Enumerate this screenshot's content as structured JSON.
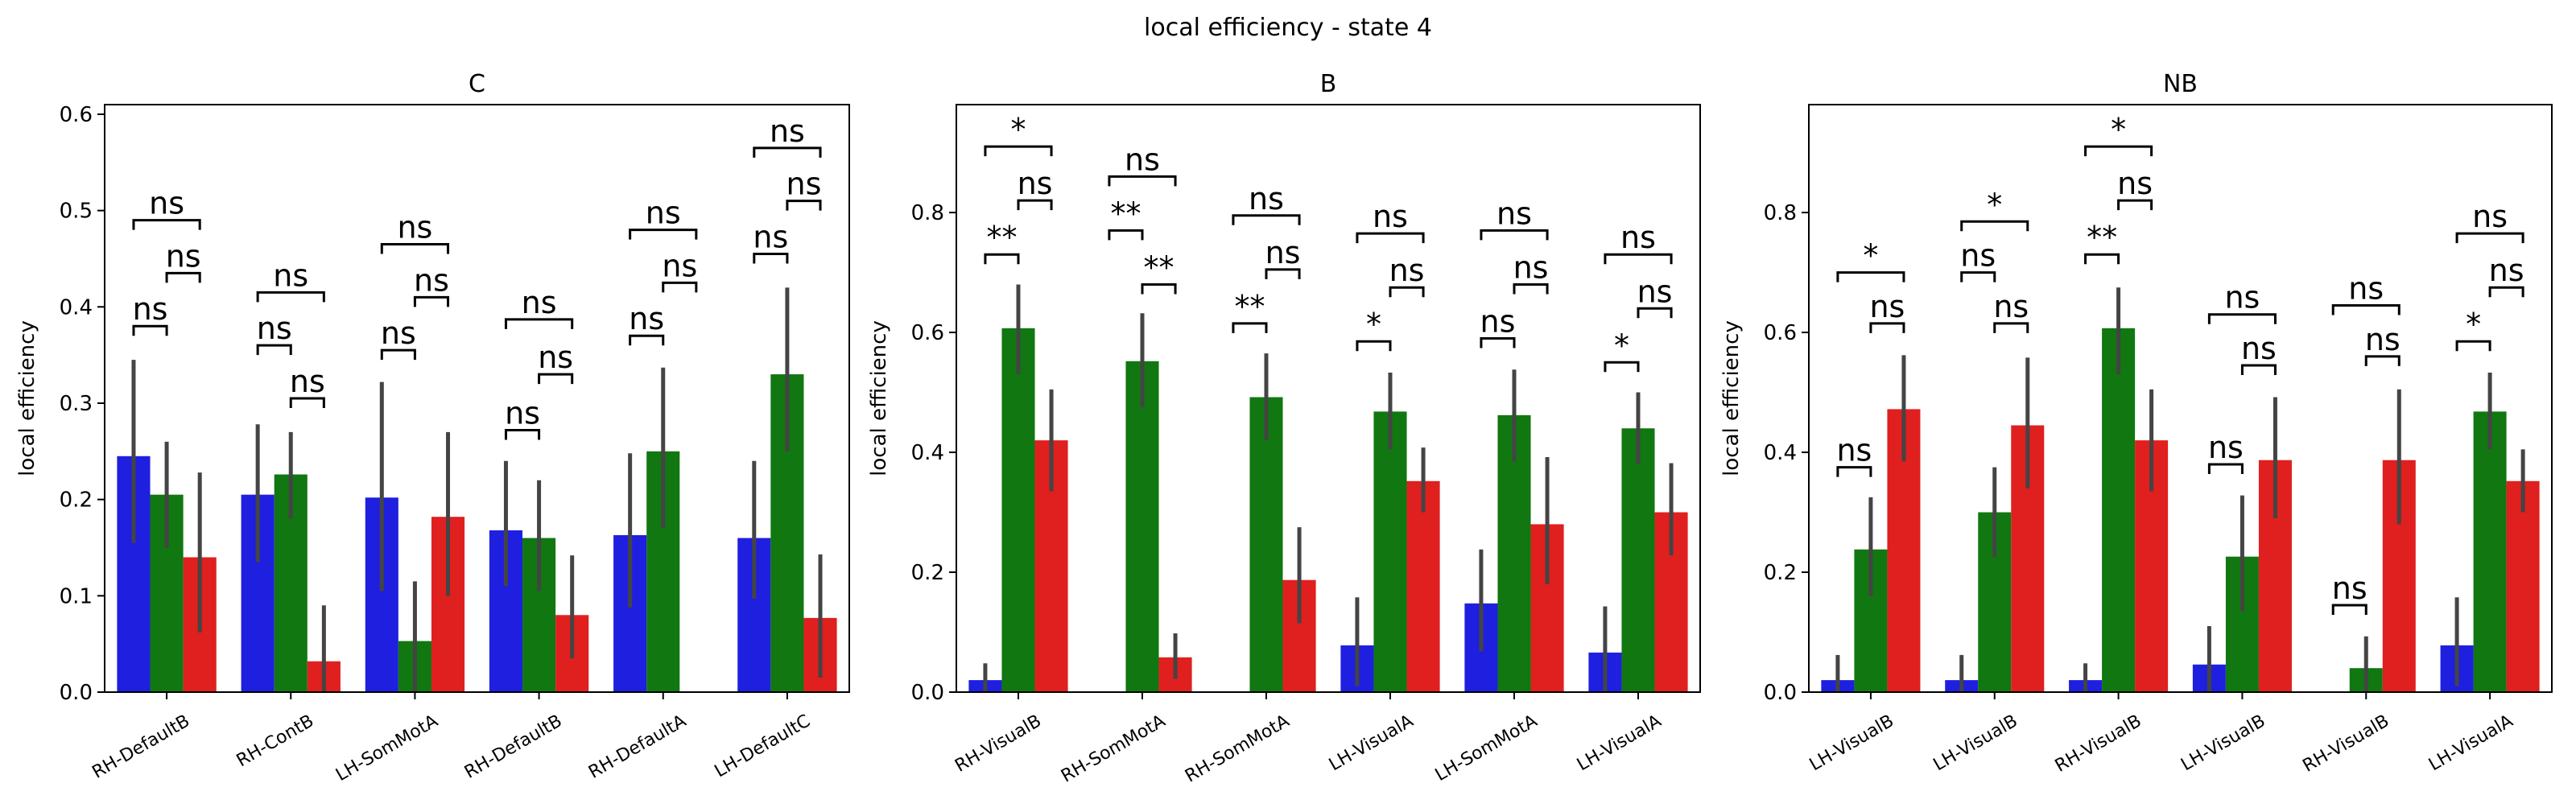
{
  "figure": {
    "suptitle": "local efficiency - state 4"
  },
  "colors": {
    "series1": "#1f1fe0",
    "series2": "#117711",
    "series3": "#e01f1f",
    "errorbar": "#444444",
    "bracket": "#000000"
  },
  "chart_data": [
    {
      "type": "bar",
      "title": "C",
      "xlabel": "",
      "ylabel": "local efficiency",
      "ylim": [
        0,
        0.61
      ],
      "yticks": [
        0.0,
        0.1,
        0.2,
        0.3,
        0.4,
        0.5,
        0.6
      ],
      "ytick_labels": [
        "0.0",
        "0.1",
        "0.2",
        "0.3",
        "0.4",
        "0.5",
        "0.6"
      ],
      "categories": [
        "RH-DefaultB",
        "RH-ContB",
        "LH-SomMotA",
        "RH-DefaultB",
        "RH-DefaultA",
        "LH-DefaultC"
      ],
      "series": [
        {
          "values": [
            0.245,
            0.205,
            0.202,
            0.168,
            0.163,
            0.16
          ],
          "err_low": [
            0.155,
            0.135,
            0.105,
            0.11,
            0.088,
            0.097
          ],
          "err_high": [
            0.345,
            0.278,
            0.322,
            0.24,
            0.248,
            0.24
          ]
        },
        {
          "values": [
            0.205,
            0.226,
            0.053,
            0.16,
            0.25,
            0.33
          ],
          "err_low": [
            0.15,
            0.18,
            0.0,
            0.105,
            0.17,
            0.25
          ],
          "err_high": [
            0.26,
            0.27,
            0.115,
            0.22,
            0.337,
            0.42
          ]
        },
        {
          "values": [
            0.14,
            0.032,
            0.182,
            0.08,
            null,
            0.077
          ],
          "err_low": [
            0.062,
            0.0,
            0.1,
            0.035,
            null,
            0.015
          ],
          "err_high": [
            0.228,
            0.09,
            0.27,
            0.142,
            null,
            0.143
          ]
        }
      ],
      "annotations": [
        {
          "category": 0,
          "pair": [
            0,
            1
          ],
          "y": 0.38,
          "label": "ns"
        },
        {
          "category": 0,
          "pair": [
            1,
            2
          ],
          "y": 0.435,
          "label": "ns"
        },
        {
          "category": 0,
          "pair": [
            0,
            2
          ],
          "y": 0.49,
          "label": "ns"
        },
        {
          "category": 1,
          "pair": [
            0,
            1
          ],
          "y": 0.36,
          "label": "ns"
        },
        {
          "category": 1,
          "pair": [
            1,
            2
          ],
          "y": 0.305,
          "label": "ns"
        },
        {
          "category": 1,
          "pair": [
            0,
            2
          ],
          "y": 0.415,
          "label": "ns"
        },
        {
          "category": 2,
          "pair": [
            0,
            1
          ],
          "y": 0.355,
          "label": "ns"
        },
        {
          "category": 2,
          "pair": [
            1,
            2
          ],
          "y": 0.41,
          "label": "ns"
        },
        {
          "category": 2,
          "pair": [
            0,
            2
          ],
          "y": 0.465,
          "label": "ns"
        },
        {
          "category": 3,
          "pair": [
            0,
            1
          ],
          "y": 0.272,
          "label": "ns"
        },
        {
          "category": 3,
          "pair": [
            1,
            2
          ],
          "y": 0.33,
          "label": "ns"
        },
        {
          "category": 3,
          "pair": [
            0,
            2
          ],
          "y": 0.387,
          "label": "ns"
        },
        {
          "category": 4,
          "pair": [
            0,
            1
          ],
          "y": 0.37,
          "label": "ns"
        },
        {
          "category": 4,
          "pair": [
            1,
            2
          ],
          "y": 0.425,
          "label": "ns"
        },
        {
          "category": 4,
          "pair": [
            0,
            2
          ],
          "y": 0.48,
          "label": "ns"
        },
        {
          "category": 5,
          "pair": [
            0,
            1
          ],
          "y": 0.455,
          "label": "ns"
        },
        {
          "category": 5,
          "pair": [
            1,
            2
          ],
          "y": 0.51,
          "label": "ns"
        },
        {
          "category": 5,
          "pair": [
            0,
            2
          ],
          "y": 0.565,
          "label": "ns"
        }
      ]
    },
    {
      "type": "bar",
      "title": "B",
      "xlabel": "",
      "ylabel": "local efficiency",
      "ylim": [
        0,
        0.98
      ],
      "yticks": [
        0.0,
        0.2,
        0.4,
        0.6,
        0.8
      ],
      "ytick_labels": [
        "0.0",
        "0.2",
        "0.4",
        "0.6",
        "0.8"
      ],
      "categories": [
        "RH-VisualB",
        "RH-SomMotA",
        "RH-SomMotA",
        "LH-VisualA",
        "LH-SomMotA",
        "LH-VisualA"
      ],
      "series": [
        {
          "values": [
            0.02,
            null,
            null,
            0.078,
            0.148,
            0.066
          ],
          "err_low": [
            0.0,
            null,
            null,
            0.01,
            0.068,
            0.0
          ],
          "err_high": [
            0.048,
            null,
            null,
            0.158,
            0.238,
            0.143
          ]
        },
        {
          "values": [
            0.607,
            0.552,
            0.492,
            0.468,
            0.462,
            0.44
          ],
          "err_low": [
            0.53,
            0.475,
            0.42,
            0.405,
            0.385,
            0.38
          ],
          "err_high": [
            0.68,
            0.632,
            0.565,
            0.533,
            0.538,
            0.5
          ]
        },
        {
          "values": [
            0.42,
            0.058,
            0.187,
            0.352,
            0.28,
            0.3
          ],
          "err_low": [
            0.335,
            0.022,
            0.115,
            0.3,
            0.18,
            0.228
          ],
          "err_high": [
            0.505,
            0.098,
            0.275,
            0.408,
            0.392,
            0.382
          ]
        }
      ],
      "annotations": [
        {
          "category": 0,
          "pair": [
            0,
            1
          ],
          "y": 0.73,
          "label": "**"
        },
        {
          "category": 0,
          "pair": [
            1,
            2
          ],
          "y": 0.82,
          "label": "ns"
        },
        {
          "category": 0,
          "pair": [
            0,
            2
          ],
          "y": 0.91,
          "label": "*"
        },
        {
          "category": 1,
          "pair": [
            0,
            1
          ],
          "y": 0.77,
          "label": "**"
        },
        {
          "category": 1,
          "pair": [
            1,
            2
          ],
          "y": 0.68,
          "label": "**"
        },
        {
          "category": 1,
          "pair": [
            0,
            2
          ],
          "y": 0.86,
          "label": "ns"
        },
        {
          "category": 2,
          "pair": [
            0,
            1
          ],
          "y": 0.615,
          "label": "**"
        },
        {
          "category": 2,
          "pair": [
            1,
            2
          ],
          "y": 0.705,
          "label": "ns"
        },
        {
          "category": 2,
          "pair": [
            0,
            2
          ],
          "y": 0.795,
          "label": "ns"
        },
        {
          "category": 3,
          "pair": [
            0,
            1
          ],
          "y": 0.585,
          "label": "*"
        },
        {
          "category": 3,
          "pair": [
            1,
            2
          ],
          "y": 0.675,
          "label": "ns"
        },
        {
          "category": 3,
          "pair": [
            0,
            2
          ],
          "y": 0.765,
          "label": "ns"
        },
        {
          "category": 4,
          "pair": [
            0,
            1
          ],
          "y": 0.59,
          "label": "ns"
        },
        {
          "category": 4,
          "pair": [
            1,
            2
          ],
          "y": 0.68,
          "label": "ns"
        },
        {
          "category": 4,
          "pair": [
            0,
            2
          ],
          "y": 0.77,
          "label": "ns"
        },
        {
          "category": 5,
          "pair": [
            0,
            1
          ],
          "y": 0.55,
          "label": "*"
        },
        {
          "category": 5,
          "pair": [
            1,
            2
          ],
          "y": 0.64,
          "label": "ns"
        },
        {
          "category": 5,
          "pair": [
            0,
            2
          ],
          "y": 0.73,
          "label": "ns"
        }
      ]
    },
    {
      "type": "bar",
      "title": "NB",
      "xlabel": "",
      "ylabel": "local efficiency",
      "ylim": [
        0,
        0.98
      ],
      "yticks": [
        0.0,
        0.2,
        0.4,
        0.6,
        0.8
      ],
      "ytick_labels": [
        "0.0",
        "0.2",
        "0.4",
        "0.6",
        "0.8"
      ],
      "categories": [
        "LH-VisualB",
        "LH-VisualB",
        "RH-VisualB",
        "LH-VisualB",
        "RH-VisualB",
        "LH-VisualA"
      ],
      "series": [
        {
          "values": [
            0.02,
            0.02,
            0.02,
            0.046,
            null,
            0.078
          ],
          "err_low": [
            0.0,
            0.0,
            0.0,
            0.0,
            null,
            0.01
          ],
          "err_high": [
            0.062,
            0.062,
            0.048,
            0.11,
            null,
            0.158
          ]
        },
        {
          "values": [
            0.238,
            0.3,
            0.607,
            0.226,
            0.04,
            0.468
          ],
          "err_low": [
            0.16,
            0.225,
            0.53,
            0.135,
            0.0,
            0.405
          ],
          "err_high": [
            0.325,
            0.375,
            0.675,
            0.328,
            0.093,
            0.533
          ]
        },
        {
          "values": [
            0.472,
            0.445,
            0.42,
            0.387,
            0.387,
            0.352
          ],
          "err_low": [
            0.385,
            0.34,
            0.335,
            0.29,
            0.28,
            0.3
          ],
          "err_high": [
            0.562,
            0.558,
            0.505,
            0.492,
            0.505,
            0.405
          ]
        }
      ],
      "annotations": [
        {
          "category": 0,
          "pair": [
            0,
            1
          ],
          "y": 0.375,
          "label": "ns"
        },
        {
          "category": 0,
          "pair": [
            1,
            2
          ],
          "y": 0.615,
          "label": "ns"
        },
        {
          "category": 0,
          "pair": [
            0,
            2
          ],
          "y": 0.7,
          "label": "*"
        },
        {
          "category": 1,
          "pair": [
            0,
            1
          ],
          "y": 0.7,
          "label": "ns"
        },
        {
          "category": 1,
          "pair": [
            1,
            2
          ],
          "y": 0.615,
          "label": "ns"
        },
        {
          "category": 1,
          "pair": [
            0,
            2
          ],
          "y": 0.785,
          "label": "*"
        },
        {
          "category": 2,
          "pair": [
            0,
            1
          ],
          "y": 0.73,
          "label": "**"
        },
        {
          "category": 2,
          "pair": [
            1,
            2
          ],
          "y": 0.82,
          "label": "ns"
        },
        {
          "category": 2,
          "pair": [
            0,
            2
          ],
          "y": 0.91,
          "label": "*"
        },
        {
          "category": 3,
          "pair": [
            0,
            1
          ],
          "y": 0.38,
          "label": "ns"
        },
        {
          "category": 3,
          "pair": [
            1,
            2
          ],
          "y": 0.545,
          "label": "ns"
        },
        {
          "category": 3,
          "pair": [
            0,
            2
          ],
          "y": 0.63,
          "label": "ns"
        },
        {
          "category": 4,
          "pair": [
            0,
            1
          ],
          "y": 0.145,
          "label": "ns"
        },
        {
          "category": 4,
          "pair": [
            1,
            2
          ],
          "y": 0.56,
          "label": "ns"
        },
        {
          "category": 4,
          "pair": [
            0,
            2
          ],
          "y": 0.645,
          "label": "ns"
        },
        {
          "category": 5,
          "pair": [
            0,
            1
          ],
          "y": 0.585,
          "label": "*"
        },
        {
          "category": 5,
          "pair": [
            1,
            2
          ],
          "y": 0.675,
          "label": "ns"
        },
        {
          "category": 5,
          "pair": [
            0,
            2
          ],
          "y": 0.765,
          "label": "ns"
        }
      ]
    }
  ]
}
